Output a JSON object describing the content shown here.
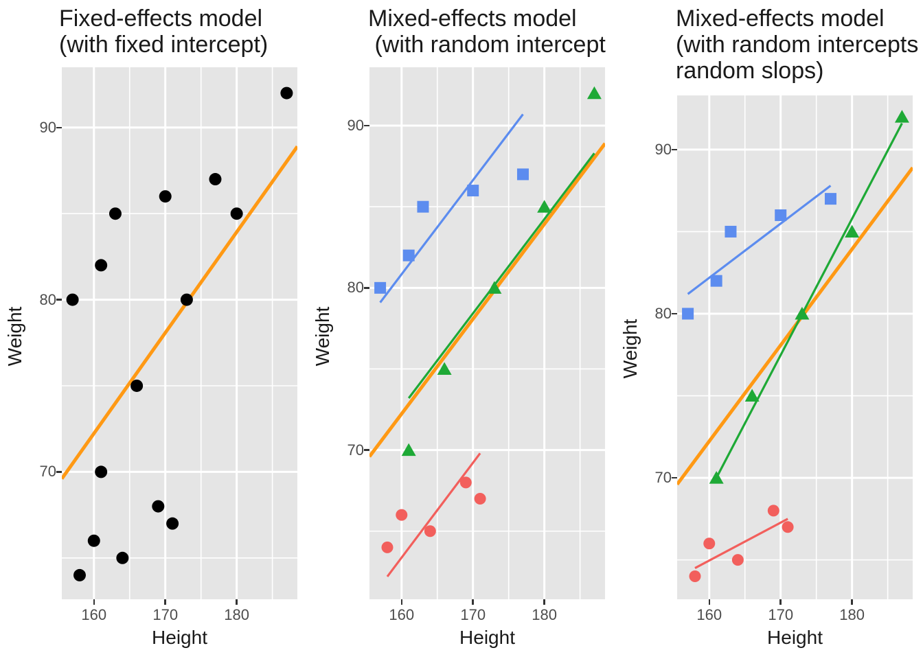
{
  "page": {
    "background": "#FFFFFF"
  },
  "colors": {
    "red": "#F25F5C",
    "green": "#1EA936",
    "blue": "#5C8CEF",
    "orange": "#FF9914",
    "black": "#000000",
    "panel_background": "#E5E5E5",
    "gridline": "#FFFFFF",
    "tick_mark": "#333333",
    "tick_text": "#4D4D4D",
    "text": "#1A1A1A"
  },
  "chart_data": [
    {
      "type": "scatter",
      "title_lines": [
        "Fixed-effects model",
        "(with fixed intercept)"
      ],
      "xlabel": "Height",
      "ylabel": "Weight",
      "xlim": [
        155.5,
        188.5
      ],
      "ylim": [
        62.6,
        93.5
      ],
      "xticks": [
        160,
        170,
        180
      ],
      "xminor": [
        165,
        175,
        185
      ],
      "yticks": [
        70,
        80,
        90
      ],
      "yminor": [
        65,
        75,
        85
      ],
      "grid": true,
      "legend": "none",
      "series": [
        {
          "name": "all-subjects",
          "marker": "circle",
          "color": "#000000",
          "size": 9,
          "points": [
            [
              157,
              80
            ],
            [
              161,
              82
            ],
            [
              163,
              85
            ],
            [
              170,
              86
            ],
            [
              177,
              87
            ],
            [
              161,
              70
            ],
            [
              166,
              75
            ],
            [
              173,
              80
            ],
            [
              180,
              85
            ],
            [
              187,
              92
            ],
            [
              158,
              64
            ],
            [
              160,
              66
            ],
            [
              164,
              65
            ],
            [
              169,
              68
            ],
            [
              171,
              67
            ]
          ]
        }
      ],
      "lines": [
        {
          "name": "fixed-effect-fit",
          "color": "#FF9914",
          "width": 5,
          "x": [
            155.5,
            188.5
          ],
          "y": [
            69.6,
            88.9
          ]
        }
      ]
    },
    {
      "type": "scatter",
      "title_lines": [
        "Mixed-effects model",
        " (with random intercept"
      ],
      "xlabel": "Height",
      "ylabel": "Weight",
      "xlim": [
        155.5,
        188.5
      ],
      "ylim": [
        60.8,
        93.6
      ],
      "xticks": [
        160,
        170,
        180
      ],
      "xminor": [
        165,
        175,
        185
      ],
      "yticks": [
        70,
        80,
        90
      ],
      "yminor": [
        65,
        75,
        85
      ],
      "grid": true,
      "legend": "none",
      "series": [
        {
          "name": "subject-blue",
          "marker": "square",
          "color": "#5C8CEF",
          "size": 8.5,
          "points": [
            [
              157,
              80
            ],
            [
              161,
              82
            ],
            [
              163,
              85
            ],
            [
              170,
              86
            ],
            [
              177,
              87
            ]
          ]
        },
        {
          "name": "subject-green",
          "marker": "triangle",
          "color": "#1EA936",
          "size": 10,
          "points": [
            [
              161,
              70
            ],
            [
              166,
              75
            ],
            [
              173,
              80
            ],
            [
              180,
              85
            ],
            [
              187,
              92
            ]
          ]
        },
        {
          "name": "subject-red",
          "marker": "circle",
          "color": "#F25F5C",
          "size": 8.5,
          "points": [
            [
              158,
              64
            ],
            [
              160,
              66
            ],
            [
              164,
              65
            ],
            [
              169,
              68
            ],
            [
              171,
              67
            ]
          ]
        }
      ],
      "lines": [
        {
          "name": "fixed-effect-fit",
          "color": "#FF9914",
          "width": 5,
          "x": [
            155.5,
            188.5
          ],
          "y": [
            69.6,
            88.9
          ]
        },
        {
          "name": "subject-red-fit",
          "color": "#F25F5C",
          "width": 3.2,
          "x": [
            158,
            171
          ],
          "y": [
            62.2,
            69.8
          ]
        },
        {
          "name": "subject-green-fit",
          "color": "#1EA936",
          "width": 3.2,
          "x": [
            161,
            187
          ],
          "y": [
            73.2,
            88.3
          ]
        },
        {
          "name": "subject-blue-fit",
          "color": "#5C8CEF",
          "width": 3.2,
          "x": [
            157,
            177
          ],
          "y": [
            79.1,
            90.7
          ]
        }
      ]
    },
    {
      "type": "scatter",
      "title_lines": [
        "Mixed-effects model",
        "(with random intercepts",
        "random slops)"
      ],
      "xlabel": "Height",
      "ylabel": "Weight",
      "xlim": [
        155.5,
        188.5
      ],
      "ylim": [
        62.6,
        93.3
      ],
      "xticks": [
        160,
        170,
        180
      ],
      "xminor": [
        165,
        175,
        185
      ],
      "yticks": [
        70,
        80,
        90
      ],
      "yminor": [
        65,
        75,
        85
      ],
      "grid": true,
      "legend": "none",
      "series": [
        {
          "name": "subject-blue",
          "marker": "square",
          "color": "#5C8CEF",
          "size": 8.5,
          "points": [
            [
              157,
              80
            ],
            [
              161,
              82
            ],
            [
              163,
              85
            ],
            [
              170,
              86
            ],
            [
              177,
              87
            ]
          ]
        },
        {
          "name": "subject-green",
          "marker": "triangle",
          "color": "#1EA936",
          "size": 10,
          "points": [
            [
              161,
              70
            ],
            [
              166,
              75
            ],
            [
              173,
              80
            ],
            [
              180,
              85
            ],
            [
              187,
              92
            ]
          ]
        },
        {
          "name": "subject-red",
          "marker": "circle",
          "color": "#F25F5C",
          "size": 8.5,
          "points": [
            [
              158,
              64
            ],
            [
              160,
              66
            ],
            [
              164,
              65
            ],
            [
              169,
              68
            ],
            [
              171,
              67
            ]
          ]
        }
      ],
      "lines": [
        {
          "name": "fixed-effect-fit",
          "color": "#FF9914",
          "width": 5,
          "x": [
            155.5,
            188.5
          ],
          "y": [
            69.6,
            88.9
          ]
        },
        {
          "name": "subject-red-fit",
          "color": "#F25F5C",
          "width": 3.2,
          "x": [
            158,
            171
          ],
          "y": [
            64.5,
            67.5
          ]
        },
        {
          "name": "subject-green-fit",
          "color": "#1EA936",
          "width": 3.2,
          "x": [
            161,
            187
          ],
          "y": [
            70,
            91.6
          ]
        },
        {
          "name": "subject-blue-fit",
          "color": "#5C8CEF",
          "width": 3.2,
          "x": [
            157,
            177
          ],
          "y": [
            81.2,
            87.8
          ]
        }
      ]
    }
  ]
}
